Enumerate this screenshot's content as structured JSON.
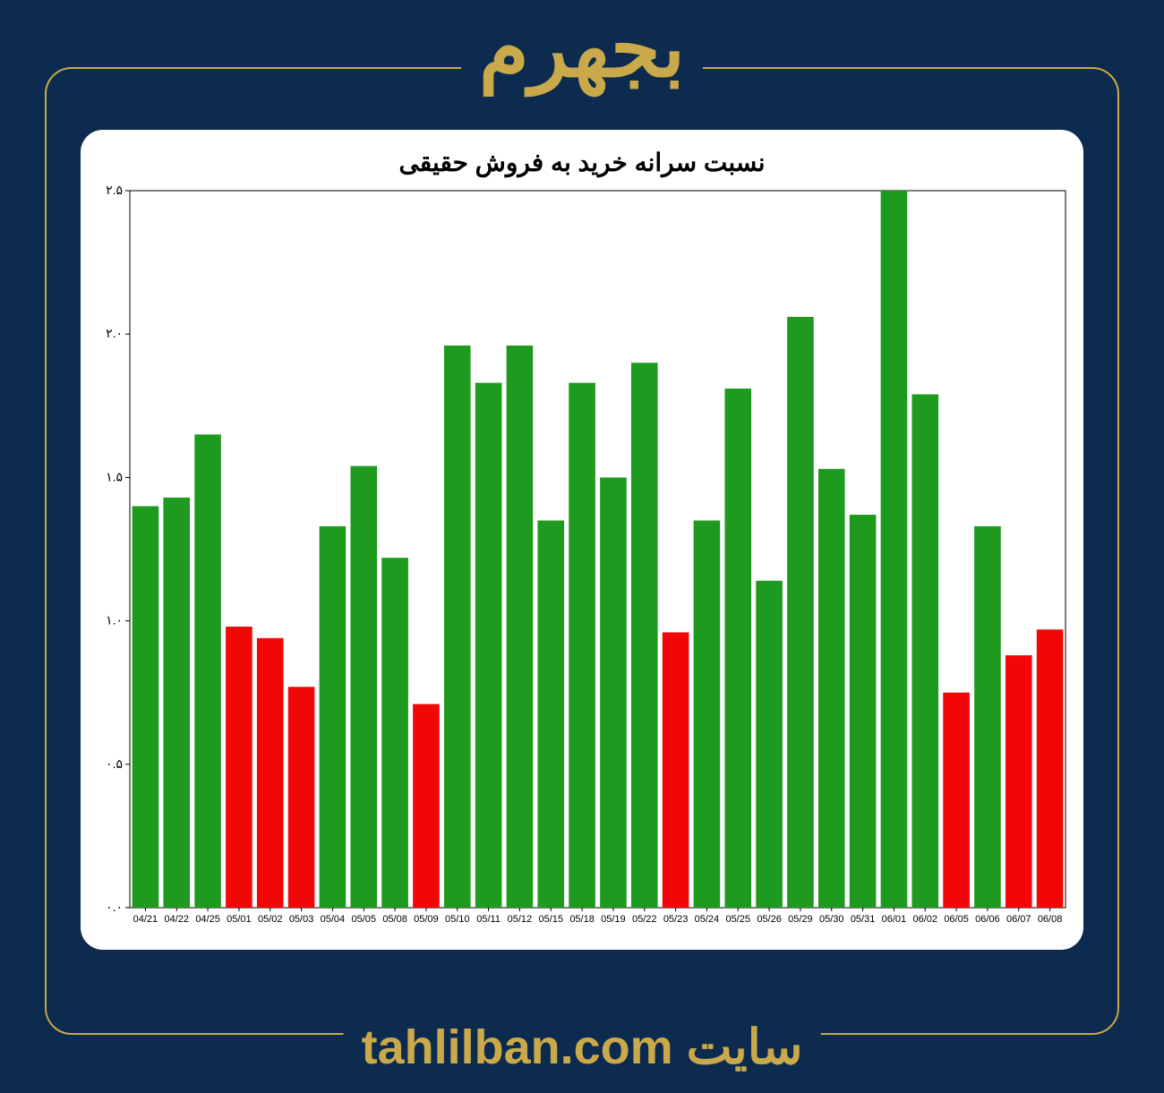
{
  "header": {
    "title": "بجهرم"
  },
  "footer": {
    "label": "سایت",
    "url_text": "tahlilban.com"
  },
  "chart": {
    "type": "bar",
    "title": "نسبت سرانه خرید به فروش حقیقی",
    "title_fontsize": 28,
    "background_color": "#ffffff",
    "panel_radius": 25,
    "frame_color": "#c9a94a",
    "page_bg": "#0d2b4f",
    "ylim": [
      0.0,
      2.5
    ],
    "ytick_step": 0.5,
    "ytick_labels": [
      "۰.۰",
      "۰.۵",
      "۱.۰",
      "۱.۵",
      "۲.۰",
      "۲.۵"
    ],
    "bar_width": 0.85,
    "green": "#1e9b1e",
    "red": "#f20707",
    "axis_color": "#000000",
    "gridlines": false,
    "data": [
      {
        "label": "04/21",
        "value": 1.4,
        "color": "#1e9b1e"
      },
      {
        "label": "04/22",
        "value": 1.43,
        "color": "#1e9b1e"
      },
      {
        "label": "04/25",
        "value": 1.65,
        "color": "#1e9b1e"
      },
      {
        "label": "05/01",
        "value": 0.98,
        "color": "#f20707"
      },
      {
        "label": "05/02",
        "value": 0.94,
        "color": "#f20707"
      },
      {
        "label": "05/03",
        "value": 0.77,
        "color": "#f20707"
      },
      {
        "label": "05/04",
        "value": 1.33,
        "color": "#1e9b1e"
      },
      {
        "label": "05/05",
        "value": 1.54,
        "color": "#1e9b1e"
      },
      {
        "label": "05/08",
        "value": 1.22,
        "color": "#1e9b1e"
      },
      {
        "label": "05/09",
        "value": 0.71,
        "color": "#f20707"
      },
      {
        "label": "05/10",
        "value": 1.96,
        "color": "#1e9b1e"
      },
      {
        "label": "05/11",
        "value": 1.83,
        "color": "#1e9b1e"
      },
      {
        "label": "05/12",
        "value": 1.96,
        "color": "#1e9b1e"
      },
      {
        "label": "05/15",
        "value": 1.35,
        "color": "#1e9b1e"
      },
      {
        "label": "05/18",
        "value": 1.83,
        "color": "#1e9b1e"
      },
      {
        "label": "05/19",
        "value": 1.5,
        "color": "#1e9b1e"
      },
      {
        "label": "05/22",
        "value": 1.9,
        "color": "#1e9b1e"
      },
      {
        "label": "05/23",
        "value": 0.96,
        "color": "#f20707"
      },
      {
        "label": "05/24",
        "value": 1.35,
        "color": "#1e9b1e"
      },
      {
        "label": "05/25",
        "value": 1.81,
        "color": "#1e9b1e"
      },
      {
        "label": "05/26",
        "value": 1.14,
        "color": "#1e9b1e"
      },
      {
        "label": "05/29",
        "value": 2.06,
        "color": "#1e9b1e"
      },
      {
        "label": "05/30",
        "value": 1.53,
        "color": "#1e9b1e"
      },
      {
        "label": "05/31",
        "value": 1.37,
        "color": "#1e9b1e"
      },
      {
        "label": "06/01",
        "value": 2.5,
        "color": "#1e9b1e"
      },
      {
        "label": "06/02",
        "value": 1.79,
        "color": "#1e9b1e"
      },
      {
        "label": "06/05",
        "value": 0.75,
        "color": "#f20707"
      },
      {
        "label": "06/06",
        "value": 1.33,
        "color": "#1e9b1e"
      },
      {
        "label": "06/07",
        "value": 0.88,
        "color": "#f20707"
      },
      {
        "label": "06/08",
        "value": 0.97,
        "color": "#f20707"
      }
    ]
  }
}
